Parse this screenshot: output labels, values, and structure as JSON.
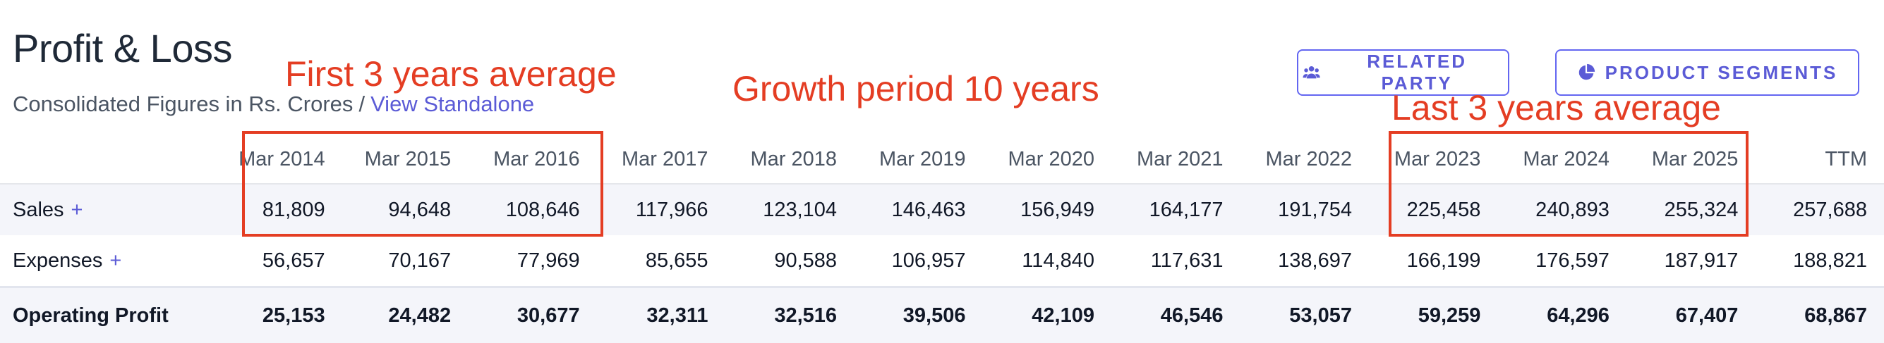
{
  "header": {
    "title": "Profit & Loss",
    "subtitle": "Consolidated Figures in Rs. Crores",
    "separator": "/",
    "standalone_link": "View Standalone"
  },
  "buttons": {
    "related_party": "RELATED PARTY",
    "product_segments": "PRODUCT SEGMENTS"
  },
  "annotations": {
    "first": "First 3 years average",
    "growth": "Growth period 10 years",
    "last": "Last 3 years average"
  },
  "colors": {
    "accent": "#5b5bd6",
    "annotation": "#e43d23"
  },
  "table": {
    "columns": [
      "Mar 2014",
      "Mar 2015",
      "Mar 2016",
      "Mar 2017",
      "Mar 2018",
      "Mar 2019",
      "Mar 2020",
      "Mar 2021",
      "Mar 2022",
      "Mar 2023",
      "Mar 2024",
      "Mar 2025",
      "TTM"
    ],
    "rows": [
      {
        "label": "Sales",
        "expandable": "+",
        "values": [
          "81,809",
          "94,648",
          "108,646",
          "117,966",
          "123,104",
          "146,463",
          "156,949",
          "164,177",
          "191,754",
          "225,458",
          "240,893",
          "255,324",
          "257,688"
        ]
      },
      {
        "label": "Expenses",
        "expandable": "+",
        "values": [
          "56,657",
          "70,167",
          "77,969",
          "85,655",
          "90,588",
          "106,957",
          "114,840",
          "117,631",
          "138,697",
          "166,199",
          "176,597",
          "187,917",
          "188,821"
        ]
      },
      {
        "label": "Operating Profit",
        "values": [
          "25,153",
          "24,482",
          "30,677",
          "32,311",
          "32,516",
          "39,506",
          "42,109",
          "46,546",
          "53,057",
          "59,259",
          "64,296",
          "67,407",
          "68,867"
        ]
      }
    ]
  }
}
